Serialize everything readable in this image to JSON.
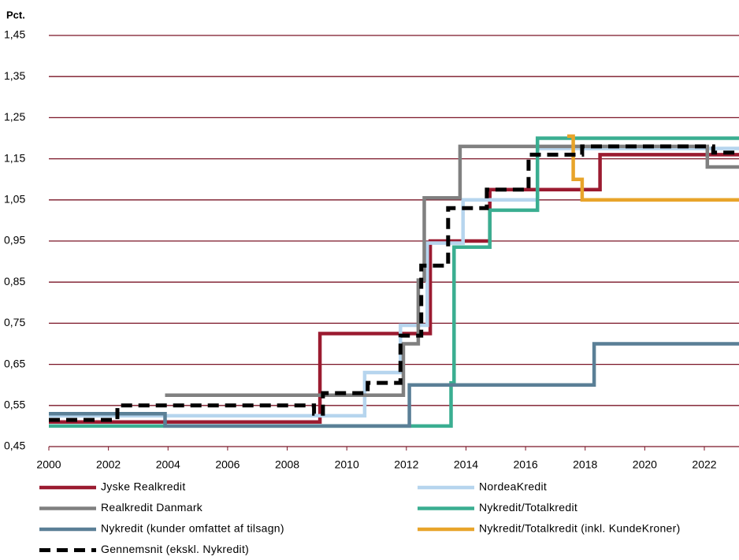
{
  "chart_data": {
    "type": "line",
    "y_label": "Pct.",
    "xlim": [
      2000,
      2023.2
    ],
    "xticks": [
      2000,
      2002,
      2004,
      2006,
      2008,
      2010,
      2012,
      2014,
      2016,
      2018,
      2020,
      2022
    ],
    "ylim": [
      0.45,
      1.45
    ],
    "yticks": [
      {
        "value": 0.45,
        "label": "0,45"
      },
      {
        "value": 0.55,
        "label": "0,55"
      },
      {
        "value": 0.65,
        "label": "0,65"
      },
      {
        "value": 0.75,
        "label": "0,75"
      },
      {
        "value": 0.85,
        "label": "0,85"
      },
      {
        "value": 0.95,
        "label": "0,95"
      },
      {
        "value": 1.05,
        "label": "1,05"
      },
      {
        "value": 1.15,
        "label": "1,15"
      },
      {
        "value": 1.25,
        "label": "1,25"
      },
      {
        "value": 1.35,
        "label": "1,35"
      },
      {
        "value": 1.45,
        "label": "1,45"
      }
    ],
    "grid": true,
    "series": [
      {
        "name": "Jyske Realkredit",
        "color": "#9b1b30",
        "dash": false,
        "x": [
          2000,
          2009.1,
          2009.1,
          2012.8,
          2012.8,
          2014.8,
          2014.8,
          2018.5,
          2018.5,
          2023.2
        ],
        "values": [
          0.51,
          0.51,
          0.725,
          0.725,
          0.95,
          0.95,
          1.075,
          1.075,
          1.16,
          1.16
        ]
      },
      {
        "name": "NordeaKredit",
        "color": "#b6d5ee",
        "dash": false,
        "x": [
          2000,
          2010.6,
          2010.6,
          2011.8,
          2011.8,
          2012.7,
          2012.7,
          2013.9,
          2013.9,
          2016.4,
          2016.4,
          2023.2
        ],
        "values": [
          0.525,
          0.525,
          0.63,
          0.63,
          0.745,
          0.745,
          0.945,
          0.945,
          1.05,
          1.05,
          1.175,
          1.175
        ]
      },
      {
        "name": "Realkredit Danmark",
        "color": "#808080",
        "dash": false,
        "x": [
          2003.9,
          2011.9,
          2011.9,
          2012.4,
          2012.4,
          2012.6,
          2012.6,
          2013.8,
          2013.8,
          2022.1,
          2022.1,
          2023.2
        ],
        "values": [
          0.575,
          0.575,
          0.7,
          0.7,
          0.855,
          0.855,
          1.055,
          1.055,
          1.18,
          1.18,
          1.13,
          1.13
        ]
      },
      {
        "name": "Nykredit/Totalkredit",
        "color": "#3aae91",
        "dash": false,
        "x": [
          2000,
          2013.5,
          2013.5,
          2013.6,
          2013.6,
          2014.8,
          2014.8,
          2016.4,
          2016.4,
          2023.2
        ],
        "values": [
          0.5,
          0.5,
          0.605,
          0.605,
          0.935,
          0.935,
          1.025,
          1.025,
          1.2,
          1.2
        ]
      },
      {
        "name": "Nykredit (kunder omfattet af tilsagn)",
        "color": "#5a7f96",
        "dash": false,
        "x": [
          2000,
          2003.9,
          2003.9,
          2012.1,
          2012.1,
          2018.3,
          2018.3,
          2023.2
        ],
        "values": [
          0.53,
          0.53,
          0.5,
          0.5,
          0.6,
          0.6,
          0.7,
          0.7
        ]
      },
      {
        "name": "Nykredit/Totalkredit (inkl. KundeKroner)",
        "color": "#e8a42a",
        "dash": false,
        "x": [
          2017.4,
          2017.6,
          2017.6,
          2017.9,
          2017.9,
          2023.2
        ],
        "values": [
          1.205,
          1.205,
          1.1,
          1.1,
          1.05,
          1.05
        ]
      },
      {
        "name": "Gennemsnit (ekskl. Nykredit)",
        "color": "#000000",
        "dash": true,
        "x": [
          2000,
          2002.3,
          2002.3,
          2008.9,
          2008.9,
          2009.2,
          2009.2,
          2010.7,
          2010.7,
          2011.8,
          2011.8,
          2012.5,
          2012.5,
          2013.4,
          2013.4,
          2014.7,
          2014.7,
          2016.1,
          2016.1,
          2017.9,
          2017.9,
          2022.3,
          2022.3,
          2023.2
        ],
        "values": [
          0.515,
          0.515,
          0.55,
          0.55,
          0.53,
          0.53,
          0.58,
          0.58,
          0.605,
          0.605,
          0.72,
          0.72,
          0.89,
          0.89,
          1.03,
          1.03,
          1.075,
          1.075,
          1.16,
          1.16,
          1.18,
          1.18,
          1.165,
          1.165
        ]
      }
    ]
  }
}
